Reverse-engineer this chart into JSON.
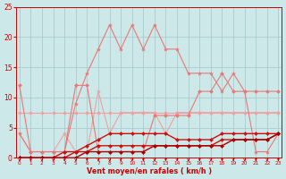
{
  "x": [
    0,
    1,
    2,
    3,
    4,
    5,
    6,
    7,
    8,
    9,
    10,
    11,
    12,
    13,
    14,
    15,
    16,
    17,
    18,
    19,
    20,
    21,
    22,
    23
  ],
  "line_flat": [
    7.5,
    7.5,
    7.5,
    7.5,
    7.5,
    7.5,
    7.5,
    7.5,
    7.5,
    7.5,
    7.5,
    7.5,
    7.5,
    7.5,
    7.5,
    7.5,
    7.5,
    7.5,
    7.5,
    7.5,
    7.5,
    7.5,
    7.5,
    7.5
  ],
  "line_bumpy": [
    4,
    1,
    1,
    1,
    4,
    1,
    1,
    11,
    4,
    7.5,
    7.5,
    7.5,
    7.5,
    4,
    7.5,
    7.5,
    7.5,
    7.5,
    7.5,
    7.5,
    7.5,
    7.5,
    7.5,
    7.5
  ],
  "line_med": [
    12,
    1,
    1,
    1,
    1,
    12,
    12,
    1,
    1,
    1,
    1,
    1,
    7,
    7,
    7,
    7,
    11,
    11,
    14,
    11,
    11,
    11,
    11,
    11
  ],
  "line_spiky": [
    4,
    1,
    1,
    1,
    1,
    9,
    14,
    18,
    22,
    18,
    22,
    18,
    22,
    18,
    18,
    14,
    14,
    14,
    11,
    14,
    11,
    1,
    1,
    4
  ],
  "line_rise1": [
    0,
    0,
    0,
    0,
    1,
    1,
    2,
    3,
    4,
    4,
    4,
    4,
    4,
    4,
    3,
    3,
    3,
    3,
    4,
    4,
    4,
    4,
    4,
    4
  ],
  "line_rise2": [
    0,
    0,
    0,
    0,
    0,
    1,
    1,
    2,
    2,
    2,
    2,
    2,
    2,
    2,
    2,
    2,
    2,
    2,
    3,
    3,
    3,
    3,
    3,
    4
  ],
  "line_rise3": [
    0,
    0,
    0,
    0,
    0,
    0,
    1,
    1,
    1,
    1,
    1,
    1,
    2,
    2,
    2,
    2,
    2,
    2,
    2,
    3,
    3,
    3,
    3,
    4
  ],
  "color_vlight": "#f0a0a0",
  "color_light": "#e87878",
  "color_medium": "#e05050",
  "color_dark": "#cc1010",
  "color_darker": "#aa0000",
  "bg_color": "#cde8e8",
  "grid_color": "#a8cccc",
  "text_color": "#cc0000",
  "xlabel": "Vent moyen/en rafales ( km/h )",
  "ylim": [
    -1,
    25
  ],
  "xlim": [
    -0.3,
    23.3
  ],
  "yticks": [
    0,
    5,
    10,
    15,
    20,
    25
  ],
  "xticks": [
    0,
    1,
    2,
    3,
    4,
    5,
    6,
    7,
    8,
    9,
    10,
    11,
    12,
    13,
    14,
    15,
    16,
    17,
    18,
    19,
    20,
    21,
    22,
    23
  ]
}
